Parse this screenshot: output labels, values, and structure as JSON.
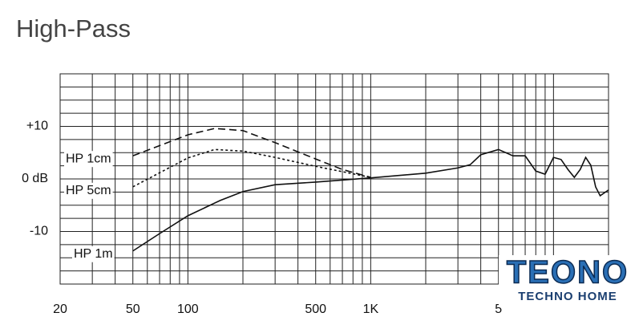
{
  "chart_data": {
    "type": "line",
    "title": "High-Pass",
    "xscale": "log",
    "xlim": [
      20,
      20000
    ],
    "ylim": [
      -20,
      20
    ],
    "xticks": [
      20,
      50,
      100,
      500,
      {
        "value": 1000,
        "label": "1K"
      },
      {
        "value": 5000,
        "label": "5"
      }
    ],
    "yticks": [
      {
        "value": 10,
        "label": "+10"
      },
      {
        "value": 0,
        "label": "0 dB"
      },
      {
        "value": -10,
        "label": "-10"
      }
    ],
    "xgrid": [
      20,
      30,
      40,
      50,
      60,
      70,
      80,
      90,
      100,
      200,
      300,
      400,
      500,
      600,
      700,
      800,
      900,
      1000,
      2000,
      3000,
      4000,
      5000,
      6000,
      7000,
      8000,
      9000,
      10000,
      20000
    ],
    "ygrid": [
      -20,
      -17.5,
      -15,
      -12.5,
      -10,
      -7.5,
      -5,
      -2.5,
      0,
      2.5,
      5,
      7.5,
      10,
      12.5,
      15,
      17.5,
      20
    ],
    "series": [
      {
        "name": "HP 1cm",
        "color": "#111111",
        "dash": "dashed",
        "x": [
          50,
          100,
          140,
          200,
          300,
          500,
          700,
          1000
        ],
        "values": [
          4.4,
          8.4,
          9.6,
          9.2,
          6.9,
          3.8,
          1.8,
          0.3
        ]
      },
      {
        "name": "HP 5cm",
        "color": "#111111",
        "dash": "dotted",
        "x": [
          50,
          100,
          140,
          200,
          300,
          500,
          1000
        ],
        "values": [
          -1.5,
          4,
          5.6,
          5.3,
          4.1,
          2.4,
          0.3
        ]
      },
      {
        "name": "HP 1m",
        "color": "#111111",
        "dash": "solid",
        "x": [
          50,
          70,
          100,
          150,
          200,
          300,
          500,
          1000,
          2000,
          3000,
          3500,
          4000,
          5000,
          6000,
          7000,
          8000,
          9000,
          10000,
          11000,
          12000,
          13000,
          14000,
          15000,
          16000,
          17000,
          18000,
          20000
        ],
        "values": [
          -13.7,
          -10.4,
          -7,
          -4.1,
          -2.4,
          -1.1,
          -0.6,
          0.2,
          1.1,
          2.1,
          2.7,
          4.6,
          5.6,
          4.4,
          4.4,
          1.5,
          0.9,
          4.1,
          3.7,
          1.8,
          0.3,
          1.8,
          4.1,
          2.6,
          -1.5,
          -3.2,
          -2.1
        ]
      }
    ]
  },
  "watermark": {
    "title": "TEONO",
    "subtitle": "TECHNO HOME"
  }
}
